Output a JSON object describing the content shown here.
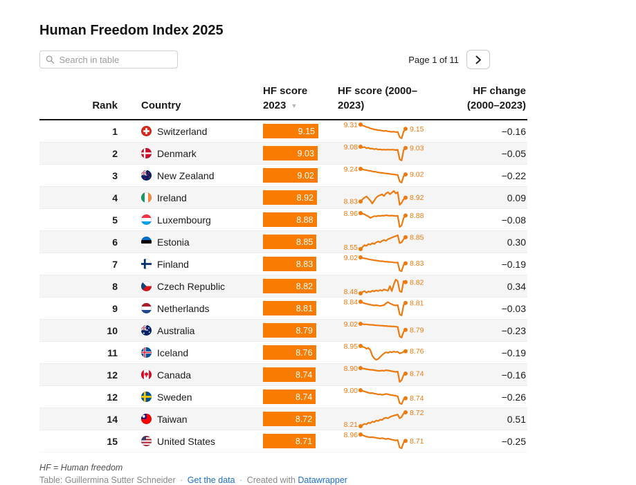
{
  "header": {
    "title": "Human Freedom Index 2025"
  },
  "toolbar": {
    "search_placeholder": "Search in table",
    "search_value": "",
    "page_status": "Page 1 of 11",
    "icons": {
      "search": "magnifier-icon",
      "next_page": "chevron-right-icon"
    }
  },
  "columns": {
    "rank": {
      "label": "Rank"
    },
    "country": {
      "label": "Country"
    },
    "score": {
      "line1": "HF score",
      "line2": "2023",
      "sort_icon": "▼"
    },
    "spark": {
      "line1": "HF score (2000–",
      "line2": "2023)"
    },
    "change": {
      "line1": "HF change",
      "line2": "(2000–2023)"
    }
  },
  "colors": {
    "bar": "#f97c00",
    "sparkline": "#ee7a0e",
    "link": "#1d6ecc",
    "header_rule": "#161616",
    "alt_row": "#f5f5f5"
  },
  "footer": {
    "note": "HF = Human freedom",
    "attribution": {
      "prefix": "Table: Guillermina Sutter Schneider",
      "separator": "·",
      "data_link": "Get the data",
      "created_with": "Created with",
      "brand_link": "Datawrapper"
    }
  },
  "chart_data": {
    "type": "table",
    "title": "Human Freedom Index 2025",
    "columns": [
      "Rank",
      "Country",
      "HF score 2023",
      "HF score (2000–2023)",
      "HF change (2000–2023)"
    ],
    "sparkline_years": [
      2000,
      2023
    ],
    "score_scale_max": 9.15,
    "rows": [
      {
        "rank": "1",
        "country": "Switzerland",
        "flag": "switzerland",
        "score": 9.15,
        "score_label": "9.15",
        "spark_start_label": "9.31",
        "spark_end_label": "9.15",
        "change_label": "−0.16",
        "spark_values": [
          9.31,
          9.28,
          9.25,
          9.22,
          9.2,
          9.17,
          9.15,
          9.13,
          9.12,
          9.1,
          9.1,
          9.08,
          9.07,
          9.08,
          9.06,
          9.05,
          9.04,
          9.05,
          9.03,
          9.04,
          8.85,
          8.8,
          9.05,
          9.15
        ]
      },
      {
        "rank": "2",
        "country": "Denmark",
        "flag": "denmark",
        "score": 9.03,
        "score_label": "9.03",
        "spark_start_label": "9.08",
        "spark_end_label": "9.03",
        "change_label": "−0.05",
        "spark_values": [
          9.08,
          9.05,
          9.07,
          9.02,
          9.04,
          9.0,
          9.01,
          8.98,
          9.0,
          8.97,
          8.98,
          8.96,
          8.97,
          8.96,
          8.97,
          8.96,
          8.97,
          8.96,
          8.95,
          8.96,
          8.6,
          8.55,
          8.95,
          9.03
        ]
      },
      {
        "rank": "3",
        "country": "New Zealand",
        "flag": "new-zealand",
        "score": 9.02,
        "score_label": "9.02",
        "spark_start_label": "9.24",
        "spark_end_label": "9.02",
        "change_label": "−0.22",
        "spark_values": [
          9.24,
          9.22,
          9.2,
          9.19,
          9.17,
          9.16,
          9.14,
          9.13,
          9.12,
          9.1,
          9.09,
          9.08,
          9.07,
          9.06,
          9.05,
          9.04,
          9.03,
          9.02,
          9.01,
          9.0,
          8.75,
          8.7,
          8.95,
          9.02
        ]
      },
      {
        "rank": "4",
        "country": "Ireland",
        "flag": "ireland",
        "score": 8.92,
        "score_label": "8.92",
        "spark_start_label": "8.83",
        "spark_end_label": "8.92",
        "change_label": "0.09",
        "spark_values": [
          8.83,
          8.88,
          8.92,
          8.95,
          8.9,
          8.85,
          8.78,
          8.85,
          8.92,
          8.96,
          8.98,
          9.0,
          8.96,
          9.02,
          9.05,
          9.0,
          9.04,
          9.08,
          9.02,
          9.05,
          8.75,
          8.8,
          8.88,
          8.92
        ]
      },
      {
        "rank": "5",
        "country": "Luxembourg",
        "flag": "luxembourg",
        "score": 8.88,
        "score_label": "8.88",
        "spark_start_label": "8.96",
        "spark_end_label": "8.88",
        "change_label": "−0.08",
        "spark_values": [
          8.96,
          8.94,
          8.92,
          8.88,
          8.85,
          8.8,
          8.83,
          8.86,
          8.85,
          8.87,
          8.86,
          8.88,
          8.87,
          8.89,
          8.88,
          8.87,
          8.88,
          8.87,
          8.86,
          8.87,
          8.5,
          8.55,
          8.8,
          8.88
        ]
      },
      {
        "rank": "6",
        "country": "Estonia",
        "flag": "estonia",
        "score": 8.85,
        "score_label": "8.85",
        "spark_start_label": "8.55",
        "spark_end_label": "8.85",
        "change_label": "0.30",
        "spark_values": [
          8.55,
          8.6,
          8.65,
          8.63,
          8.68,
          8.66,
          8.7,
          8.68,
          8.72,
          8.74,
          8.72,
          8.76,
          8.78,
          8.76,
          8.8,
          8.82,
          8.84,
          8.86,
          8.88,
          8.9,
          8.7,
          8.72,
          8.8,
          8.85
        ]
      },
      {
        "rank": "7",
        "country": "Finland",
        "flag": "finland",
        "score": 8.83,
        "score_label": "8.83",
        "spark_start_label": "9.02",
        "spark_end_label": "8.83",
        "change_label": "−0.19",
        "spark_values": [
          9.02,
          9.0,
          8.99,
          8.98,
          8.96,
          8.95,
          8.94,
          8.93,
          8.92,
          8.91,
          8.9,
          8.9,
          8.89,
          8.88,
          8.88,
          8.87,
          8.87,
          8.86,
          8.85,
          8.86,
          8.6,
          8.58,
          8.78,
          8.83
        ]
      },
      {
        "rank": "8",
        "country": "Czech Republic",
        "flag": "czech-republic",
        "score": 8.82,
        "score_label": "8.82",
        "spark_start_label": "8.48",
        "spark_end_label": "8.82",
        "change_label": "0.34",
        "spark_values": [
          8.48,
          8.52,
          8.55,
          8.5,
          8.54,
          8.52,
          8.56,
          8.54,
          8.57,
          8.55,
          8.58,
          8.56,
          8.6,
          8.58,
          8.56,
          8.7,
          8.55,
          8.75,
          8.9,
          8.85,
          8.55,
          8.52,
          8.85,
          8.82
        ]
      },
      {
        "rank": "9",
        "country": "Netherlands",
        "flag": "netherlands",
        "score": 8.81,
        "score_label": "8.81",
        "spark_start_label": "8.84",
        "spark_end_label": "8.81",
        "change_label": "−0.03",
        "spark_values": [
          8.84,
          8.82,
          8.8,
          8.79,
          8.78,
          8.77,
          8.76,
          8.75,
          8.76,
          8.75,
          8.74,
          8.75,
          8.76,
          8.8,
          8.83,
          8.8,
          8.78,
          8.76,
          8.75,
          8.76,
          8.55,
          8.52,
          8.76,
          8.81
        ]
      },
      {
        "rank": "10",
        "country": "Australia",
        "flag": "australia",
        "score": 8.79,
        "score_label": "8.79",
        "spark_start_label": "9.02",
        "spark_end_label": "8.79",
        "change_label": "−0.23",
        "spark_values": [
          9.02,
          9.01,
          9.0,
          9.0,
          8.99,
          8.98,
          8.98,
          8.97,
          8.96,
          8.96,
          8.95,
          8.95,
          8.94,
          8.94,
          8.93,
          8.93,
          8.92,
          8.92,
          8.91,
          8.9,
          8.55,
          8.5,
          8.72,
          8.79
        ]
      },
      {
        "rank": "11",
        "country": "Iceland",
        "flag": "iceland",
        "score": 8.76,
        "score_label": "8.76",
        "spark_start_label": "8.95",
        "spark_end_label": "8.76",
        "change_label": "−0.19",
        "spark_values": [
          8.95,
          8.92,
          8.9,
          8.85,
          8.88,
          8.8,
          8.6,
          8.5,
          8.45,
          8.48,
          8.55,
          8.62,
          8.68,
          8.72,
          8.7,
          8.74,
          8.72,
          8.75,
          8.73,
          8.74,
          8.68,
          8.7,
          8.74,
          8.76
        ]
      },
      {
        "rank": "12",
        "country": "Canada",
        "flag": "canada",
        "score": 8.74,
        "score_label": "8.74",
        "spark_start_label": "8.90",
        "spark_end_label": "8.74",
        "change_label": "−0.16",
        "spark_values": [
          8.9,
          8.89,
          8.88,
          8.87,
          8.86,
          8.85,
          8.85,
          8.84,
          8.83,
          8.82,
          8.82,
          8.83,
          8.82,
          8.84,
          8.83,
          8.82,
          8.81,
          8.8,
          8.79,
          8.8,
          8.5,
          8.55,
          8.7,
          8.74
        ]
      },
      {
        "rank": "12",
        "country": "Sweden",
        "flag": "sweden",
        "score": 8.74,
        "score_label": "8.74",
        "spark_start_label": "9.00",
        "spark_end_label": "8.74",
        "change_label": "−0.26",
        "spark_values": [
          9.0,
          8.98,
          8.96,
          8.94,
          8.92,
          8.9,
          8.91,
          8.89,
          8.88,
          8.86,
          8.87,
          8.85,
          8.86,
          8.88,
          8.87,
          8.85,
          8.84,
          8.83,
          8.82,
          8.8,
          8.58,
          8.55,
          8.7,
          8.74
        ]
      },
      {
        "rank": "14",
        "country": "Taiwan",
        "flag": "taiwan",
        "score": 8.72,
        "score_label": "8.72",
        "spark_start_label": "8.21",
        "spark_end_label": "8.72",
        "change_label": "0.51",
        "spark_values": [
          8.21,
          8.25,
          8.3,
          8.28,
          8.34,
          8.32,
          8.38,
          8.36,
          8.42,
          8.4,
          8.45,
          8.44,
          8.5,
          8.52,
          8.5,
          8.55,
          8.58,
          8.6,
          8.62,
          8.64,
          8.5,
          8.55,
          8.68,
          8.72
        ]
      },
      {
        "rank": "15",
        "country": "United States",
        "flag": "united-states",
        "score": 8.71,
        "score_label": "8.71",
        "spark_start_label": "8.96",
        "spark_end_label": "8.71",
        "change_label": "−0.25",
        "spark_values": [
          8.96,
          8.94,
          8.9,
          8.88,
          8.86,
          8.85,
          8.86,
          8.84,
          8.83,
          8.82,
          8.8,
          8.82,
          8.8,
          8.78,
          8.8,
          8.78,
          8.76,
          8.74,
          8.73,
          8.74,
          8.45,
          8.42,
          8.65,
          8.71
        ]
      }
    ]
  }
}
